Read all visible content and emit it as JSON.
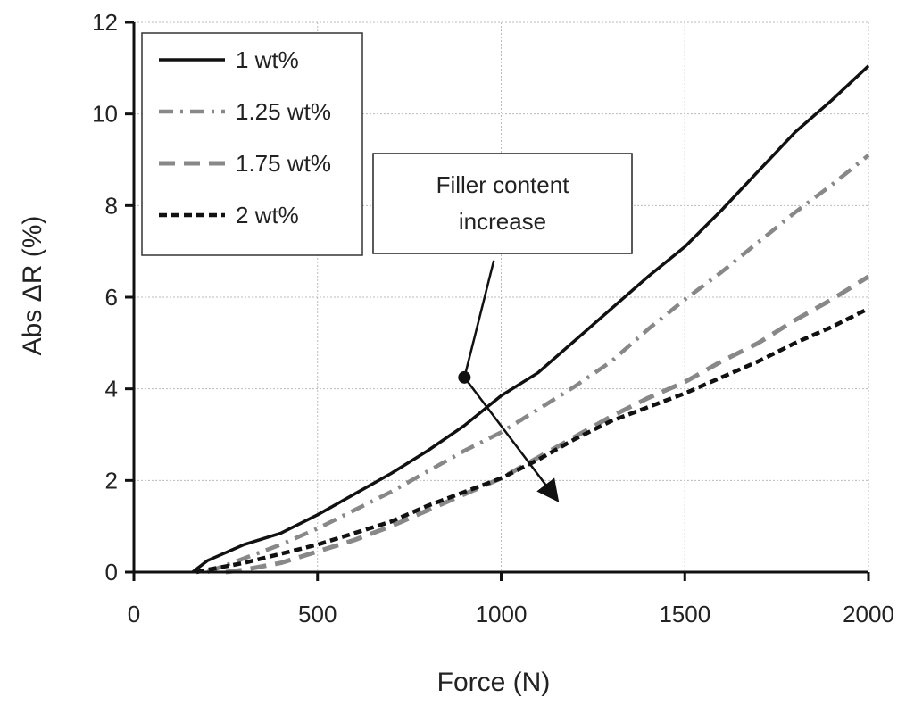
{
  "chart_data": {
    "type": "line",
    "title": "",
    "xlabel": "Force  (N)",
    "ylabel": "Abs ΔR (%)",
    "xlim": [
      0,
      2000
    ],
    "ylim": [
      0,
      12
    ],
    "x_ticks": [
      0,
      500,
      1000,
      1500,
      2000
    ],
    "y_ticks": [
      0,
      2,
      4,
      6,
      8,
      10,
      12
    ],
    "x_tick_labels": [
      "0",
      "500",
      "1000",
      "1500",
      "2000"
    ],
    "y_tick_labels": [
      "0",
      "2",
      "4",
      "6",
      "8",
      "10",
      "12"
    ],
    "grid": true,
    "legend_position": "top-left",
    "series": [
      {
        "name": "1 wt%",
        "color": "#111111",
        "style": "solid",
        "x": [
          160,
          200,
          300,
          400,
          500,
          600,
          700,
          800,
          900,
          1000,
          1100,
          1200,
          1300,
          1400,
          1500,
          1600,
          1700,
          1800,
          1900,
          2000
        ],
        "y": [
          0.0,
          0.25,
          0.6,
          0.85,
          1.25,
          1.7,
          2.15,
          2.65,
          3.2,
          3.85,
          4.35,
          5.05,
          5.75,
          6.45,
          7.1,
          7.9,
          8.75,
          9.6,
          10.3,
          11.05
        ]
      },
      {
        "name": "1.25 wt%",
        "color": "#888888",
        "style": "dashdot",
        "x": [
          200,
          300,
          400,
          500,
          600,
          700,
          800,
          900,
          1000,
          1100,
          1200,
          1300,
          1400,
          1500,
          1600,
          1700,
          1800,
          1900,
          2000
        ],
        "y": [
          0.0,
          0.3,
          0.6,
          0.95,
          1.35,
          1.75,
          2.2,
          2.65,
          3.05,
          3.55,
          4.05,
          4.6,
          5.3,
          5.95,
          6.55,
          7.2,
          7.85,
          8.45,
          9.1
        ]
      },
      {
        "name": "1.75 wt%",
        "color": "#888888",
        "style": "dashed",
        "x": [
          250,
          300,
          400,
          500,
          600,
          700,
          800,
          900,
          1000,
          1100,
          1200,
          1300,
          1400,
          1500,
          1600,
          1700,
          1800,
          1900,
          2000
        ],
        "y": [
          0.0,
          0.05,
          0.2,
          0.45,
          0.7,
          1.0,
          1.35,
          1.7,
          2.05,
          2.5,
          2.95,
          3.4,
          3.8,
          4.15,
          4.6,
          5.0,
          5.5,
          5.95,
          6.45
        ]
      },
      {
        "name": "2 wt%",
        "color": "#111111",
        "style": "dotted",
        "x": [
          170,
          200,
          300,
          400,
          500,
          600,
          700,
          800,
          900,
          1000,
          1100,
          1200,
          1300,
          1400,
          1500,
          1600,
          1700,
          1800,
          1900,
          2000
        ],
        "y": [
          0.0,
          0.05,
          0.2,
          0.4,
          0.6,
          0.85,
          1.1,
          1.45,
          1.75,
          2.05,
          2.45,
          2.9,
          3.3,
          3.6,
          3.9,
          4.25,
          4.6,
          5.0,
          5.35,
          5.75
        ]
      }
    ],
    "annotation": {
      "lines": [
        "Filler content",
        "increase"
      ],
      "arrow_start": [
        900,
        4.25
      ],
      "arrow_tail": [
        1150,
        1.6
      ],
      "pointer_tip": [
        980,
        6.8
      ]
    }
  }
}
